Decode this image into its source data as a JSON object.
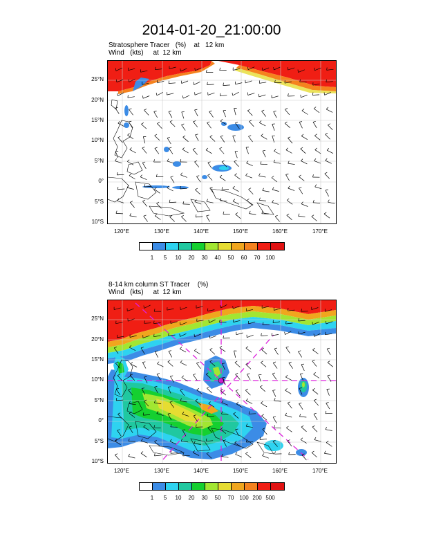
{
  "title": "2014-01-20_21:00:00",
  "panels": [
    {
      "subtitle_line1": "Stratosphere Tracer   (%)    at   12 km",
      "subtitle_line2": "Wind   (kts)     at  12 km",
      "lat_labels": [
        "25°N",
        "20°N",
        "15°N",
        "10°N",
        "5°N",
        "0°",
        "5°S",
        "10°S"
      ],
      "lon_labels": [
        "120°E",
        "130°E",
        "140°E",
        "150°E",
        "160°E",
        "170°E"
      ],
      "colorbar_labels": [
        "1",
        "5",
        "10",
        "20",
        "30",
        "40",
        "50",
        "60",
        "70",
        "100"
      ]
    },
    {
      "subtitle_line1": "8-14 km column ST Tracer    (%)",
      "subtitle_line2": "Wind   (kts)     at  12 km",
      "lat_labels": [
        "25°N",
        "20°N",
        "15°N",
        "10°N",
        "5°N",
        "0°",
        "5°S",
        "10°S"
      ],
      "lon_labels": [
        "120°E",
        "130°E",
        "140°E",
        "150°E",
        "160°E",
        "170°E"
      ],
      "colorbar_labels": [
        "1",
        "5",
        "10",
        "20",
        "30",
        "50",
        "70",
        "100",
        "200",
        "500"
      ]
    }
  ],
  "colors": {
    "colorbar": [
      "#ffffff",
      "#3c8ce6",
      "#2ed3f0",
      "#20c8a0",
      "#15d030",
      "#a2e632",
      "#e6dc32",
      "#f0a61e",
      "#f5821e",
      "#f01e14",
      "#e11212"
    ],
    "track_line": "#dd22dd",
    "storm_marker": "#cc22cc"
  }
}
